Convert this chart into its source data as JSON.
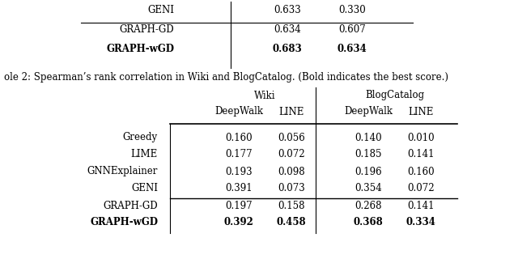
{
  "caption": "ole 2: Spearman’s rank correlation in Wiki and BlogCatalog. (Bold indicates the best score.)",
  "top_table": {
    "rows": [
      {
        "method": "GENI",
        "v1": "0.633",
        "v2": "0.330",
        "bold": false
      },
      {
        "method": "GRAPH-GD",
        "v1": "0.634",
        "v2": "0.607",
        "bold": false
      },
      {
        "method": "GRAPH-wGD",
        "v1": "0.683",
        "v2": "0.634",
        "bold": true
      }
    ],
    "sep_after": 0
  },
  "bottom_table": {
    "col_groups": [
      "Wiki",
      "BlogCatalog"
    ],
    "sub_cols": [
      "DeepWalk",
      "LINE",
      "DeepWalk",
      "LINE"
    ],
    "rows": [
      {
        "method": "Greedy",
        "vals": [
          "0.160",
          "0.056",
          "0.140",
          "0.010"
        ],
        "bold": false
      },
      {
        "method": "LIME",
        "vals": [
          "0.177",
          "0.072",
          "0.185",
          "0.141"
        ],
        "bold": false
      },
      {
        "method": "GNNExplainer",
        "vals": [
          "0.193",
          "0.098",
          "0.196",
          "0.160"
        ],
        "bold": false
      },
      {
        "method": "GENI",
        "vals": [
          "0.391",
          "0.073",
          "0.354",
          "0.072"
        ],
        "bold": false
      },
      {
        "method": "GRAPH-GD",
        "vals": [
          "0.197",
          "0.158",
          "0.268",
          "0.141"
        ],
        "bold": false
      },
      {
        "method": "GRAPH-wGD",
        "vals": [
          "0.392",
          "0.458",
          "0.368",
          "0.334"
        ],
        "bold": true
      }
    ],
    "separator_after": 4
  },
  "fontsize": 8.5,
  "bg_color": "#ffffff"
}
